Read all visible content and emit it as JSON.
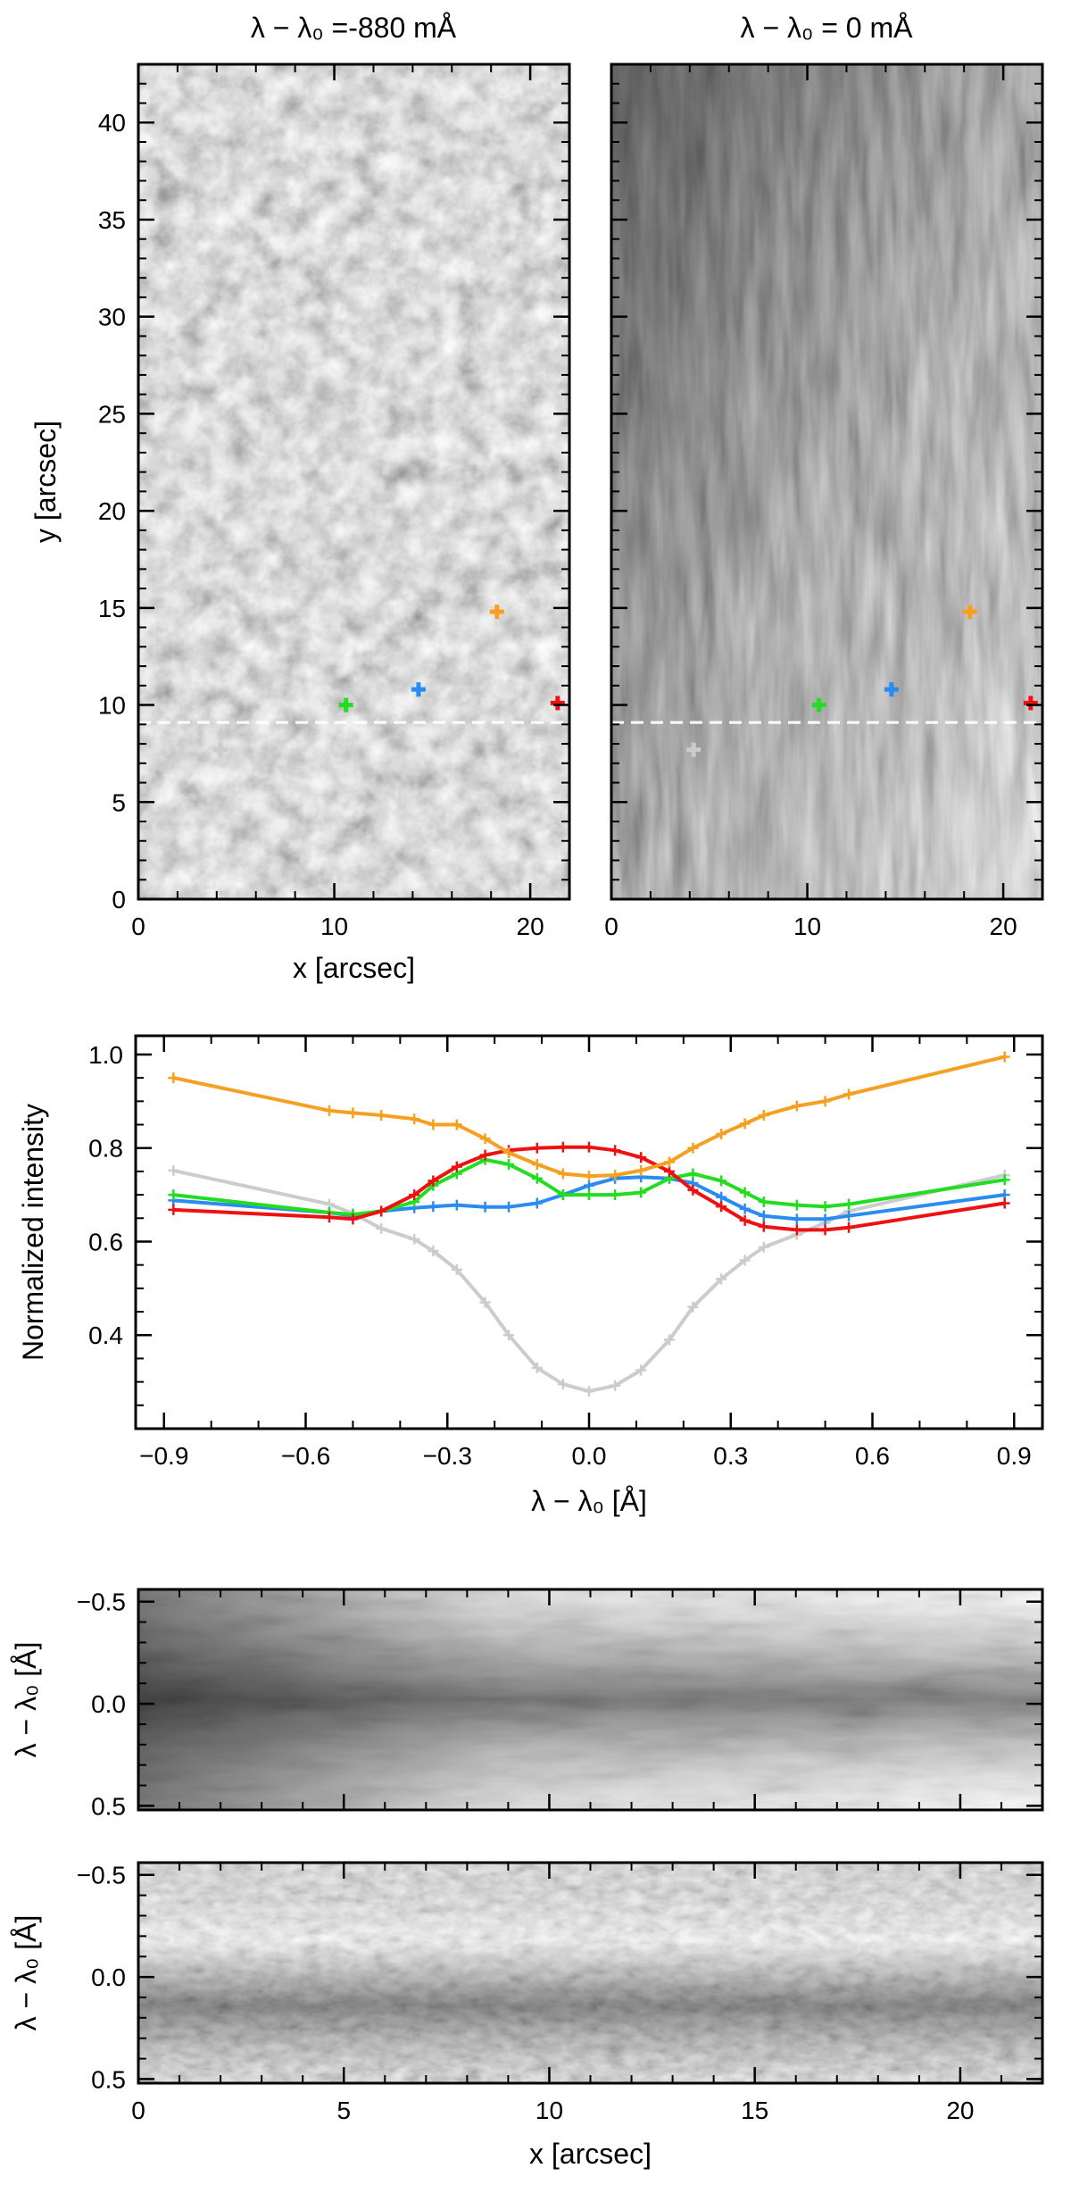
{
  "chart_data": [
    {
      "type": "image",
      "title": "λ − λ₀ =-880 mÅ",
      "xlabel": "x [arcsec]",
      "ylabel": "y [arcsec]",
      "xlim": [
        0,
        22
      ],
      "ylim": [
        0,
        43
      ],
      "xticks": [
        0,
        10,
        20
      ],
      "yticks": [
        0,
        5,
        10,
        15,
        20,
        25,
        30,
        35,
        40
      ],
      "dashed_line_y": 9.1,
      "markers": [
        {
          "color": "#cccccc",
          "x": 4.2,
          "y": 7.7
        },
        {
          "color": "#22dd22",
          "x": 10.6,
          "y": 10.0
        },
        {
          "color": "#2a8cf0",
          "x": 14.3,
          "y": 10.8
        },
        {
          "color": "#f5a020",
          "x": 18.3,
          "y": 14.8
        },
        {
          "color": "#ee1111",
          "x": 21.4,
          "y": 10.1
        }
      ]
    },
    {
      "type": "image",
      "title": "λ − λ₀ = 0 mÅ",
      "xlim": [
        0,
        22
      ],
      "ylim": [
        0,
        43
      ],
      "xticks": [
        0,
        10,
        20
      ],
      "dashed_line_y": 9.1,
      "markers": [
        {
          "color": "#cccccc",
          "x": 4.2,
          "y": 7.7
        },
        {
          "color": "#22dd22",
          "x": 10.6,
          "y": 10.0
        },
        {
          "color": "#2a8cf0",
          "x": 14.3,
          "y": 10.8
        },
        {
          "color": "#f5a020",
          "x": 18.3,
          "y": 14.8
        },
        {
          "color": "#ee1111",
          "x": 21.4,
          "y": 10.1
        }
      ]
    },
    {
      "type": "line",
      "xlabel": "λ − λ₀ [Å]",
      "ylabel": "Normalized intensity",
      "xlim": [
        -0.96,
        0.96
      ],
      "ylim": [
        0.2,
        1.04
      ],
      "xticks": [
        -0.9,
        -0.6,
        -0.3,
        0.0,
        0.3,
        0.6,
        0.9
      ],
      "xtick_labels": [
        "−0.9",
        "−0.6",
        "−0.3",
        "0.0",
        "0.3",
        "0.6",
        "0.9"
      ],
      "yticks": [
        0.4,
        0.6,
        0.8,
        1.0
      ],
      "ytick_labels": [
        "0.4",
        "0.6",
        "0.8",
        "1.0"
      ],
      "x": [
        -0.88,
        -0.55,
        -0.5,
        -0.44,
        -0.37,
        -0.33,
        -0.28,
        -0.22,
        -0.17,
        -0.11,
        -0.055,
        0.0,
        0.055,
        0.11,
        0.17,
        0.22,
        0.28,
        0.33,
        0.37,
        0.44,
        0.5,
        0.55,
        0.88
      ],
      "series": [
        {
          "color": "#f5a020",
          "values": [
            0.95,
            0.88,
            0.875,
            0.87,
            0.862,
            0.85,
            0.85,
            0.82,
            0.79,
            0.765,
            0.745,
            0.74,
            0.742,
            0.752,
            0.77,
            0.8,
            0.83,
            0.852,
            0.87,
            0.89,
            0.9,
            0.915,
            0.995
          ]
        },
        {
          "color": "#ee1111",
          "values": [
            0.668,
            0.652,
            0.648,
            0.665,
            0.7,
            0.73,
            0.76,
            0.785,
            0.795,
            0.8,
            0.802,
            0.802,
            0.795,
            0.78,
            0.75,
            0.71,
            0.675,
            0.645,
            0.632,
            0.625,
            0.625,
            0.63,
            0.682
          ]
        },
        {
          "color": "#22dd22",
          "values": [
            0.7,
            0.662,
            0.658,
            0.665,
            0.685,
            0.72,
            0.745,
            0.775,
            0.765,
            0.735,
            0.7,
            0.7,
            0.7,
            0.705,
            0.735,
            0.745,
            0.73,
            0.705,
            0.685,
            0.678,
            0.675,
            0.68,
            0.732
          ]
        },
        {
          "color": "#2a8cf0",
          "values": [
            0.688,
            0.662,
            0.655,
            0.665,
            0.672,
            0.675,
            0.678,
            0.674,
            0.674,
            0.682,
            0.7,
            0.72,
            0.735,
            0.738,
            0.735,
            0.725,
            0.695,
            0.67,
            0.655,
            0.648,
            0.648,
            0.655,
            0.7
          ]
        },
        {
          "color": "#cccccc",
          "values": [
            0.752,
            0.68,
            0.66,
            0.628,
            0.605,
            0.58,
            0.54,
            0.47,
            0.4,
            0.33,
            0.295,
            0.28,
            0.292,
            0.325,
            0.39,
            0.46,
            0.52,
            0.56,
            0.588,
            0.615,
            0.64,
            0.665,
            0.742
          ]
        }
      ]
    },
    {
      "type": "heatmap",
      "ylabel": "λ − λ₀ [Å]",
      "xlim": [
        0,
        22
      ],
      "ylim": [
        -0.56,
        0.52
      ],
      "xticks": [
        0,
        5,
        10,
        15,
        20
      ],
      "yticks": [
        -0.5,
        0.0,
        0.5
      ],
      "ytick_labels": [
        "−0.5",
        "0.0",
        "0.5"
      ]
    },
    {
      "type": "heatmap",
      "xlabel": "x [arcsec]",
      "ylabel": "λ − λ₀ [Å]",
      "xlim": [
        0,
        22
      ],
      "ylim": [
        -0.56,
        0.52
      ],
      "xticks": [
        0,
        5,
        10,
        15,
        20
      ],
      "xtick_labels": [
        "0",
        "5",
        "10",
        "15",
        "20"
      ],
      "yticks": [
        -0.5,
        0.0,
        0.5
      ],
      "ytick_labels": [
        "−0.5",
        "0.0",
        "0.5"
      ]
    }
  ]
}
